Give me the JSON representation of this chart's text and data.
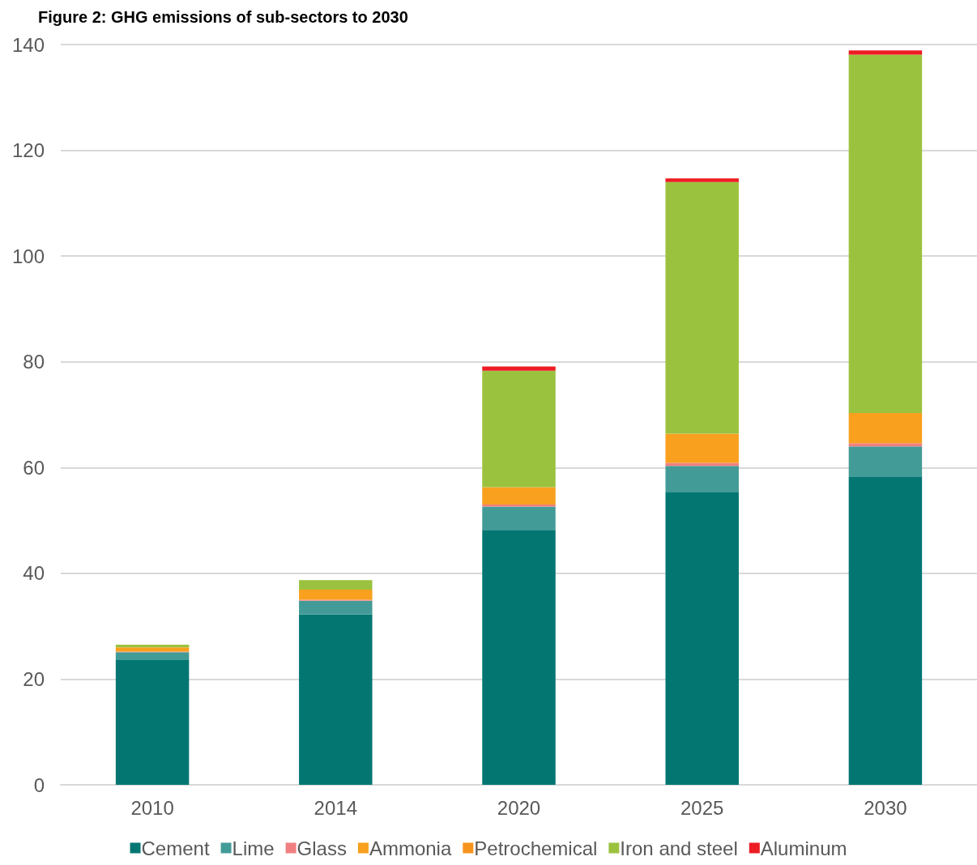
{
  "chart_data": {
    "type": "bar",
    "title": "Figure 2: GHG emissions of sub-sectors to 2030",
    "categories": [
      "2010",
      "2014",
      "2020",
      "2025",
      "2030"
    ],
    "stacked": true,
    "series": [
      {
        "name": "Cement",
        "color": "#037672",
        "values": [
          23.6,
          32.2,
          48.2,
          55.4,
          58.2
        ]
      },
      {
        "name": "Lime",
        "color": "#429b97",
        "values": [
          1.5,
          2.6,
          4.4,
          4.9,
          5.8
        ]
      },
      {
        "name": "Glass",
        "color": "#f08080",
        "values": [
          0.1,
          0.2,
          0.4,
          0.6,
          0.6
        ]
      },
      {
        "name": "Ammonia",
        "color": "#f9a01e",
        "values": [
          0.8,
          1.9,
          3.3,
          5.5,
          5.7
        ]
      },
      {
        "name": "Petrochemical",
        "color": "#f7941d",
        "values": [
          0,
          0,
          0,
          0,
          0
        ]
      },
      {
        "name": "Iron and steel",
        "color": "#9bc23f",
        "values": [
          0.5,
          1.8,
          22.0,
          47.6,
          67.8
        ]
      },
      {
        "name": "Aluminum",
        "color": "#ed1c24",
        "values": [
          0,
          0,
          0.8,
          0.7,
          0.8
        ]
      }
    ],
    "ylim": [
      0,
      140
    ],
    "yticks": [
      0,
      20,
      40,
      60,
      80,
      100,
      120,
      140
    ],
    "grid": "y",
    "legend": "bottom"
  }
}
